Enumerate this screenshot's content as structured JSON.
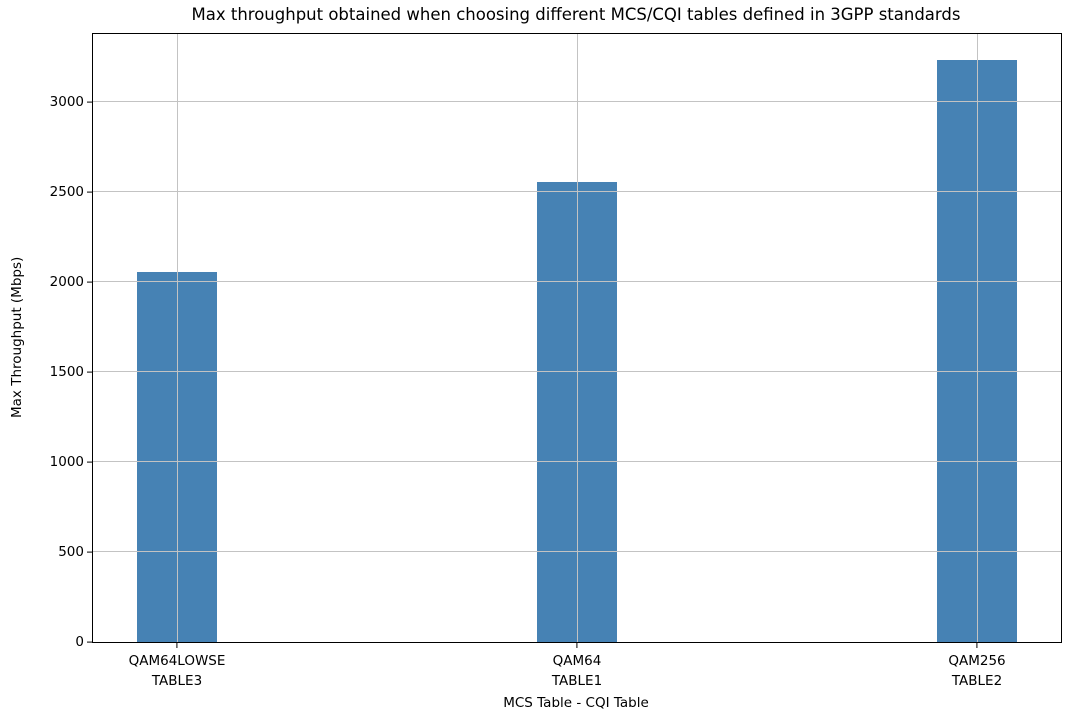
{
  "chart_data": {
    "type": "bar",
    "title": "Max throughput obtained when choosing different MCS/CQI tables defined in 3GPP standards",
    "xlabel": "MCS Table - CQI Table",
    "ylabel": "Max Throughput (Mbps)",
    "categories": [
      {
        "line1": "QAM64LOWSE",
        "line2": "TABLE3"
      },
      {
        "line1": "QAM64",
        "line2": "TABLE1"
      },
      {
        "line1": "QAM256",
        "line2": "TABLE2"
      }
    ],
    "values": [
      2058,
      2558,
      3234
    ],
    "x_positions": [
      0,
      1,
      2
    ],
    "xlim": [
      -0.21,
      2.21
    ],
    "ylim": [
      0,
      3378
    ],
    "yticks": [
      0,
      500,
      1000,
      1500,
      2000,
      2500,
      3000
    ],
    "bar_width": 0.2,
    "bar_color": "#4682b4",
    "grid": true,
    "grid_on_top_of_bars": true,
    "grid_color": "#c3c3c3",
    "spine_color": "#000000",
    "text_color": "#000000",
    "legend": null
  }
}
